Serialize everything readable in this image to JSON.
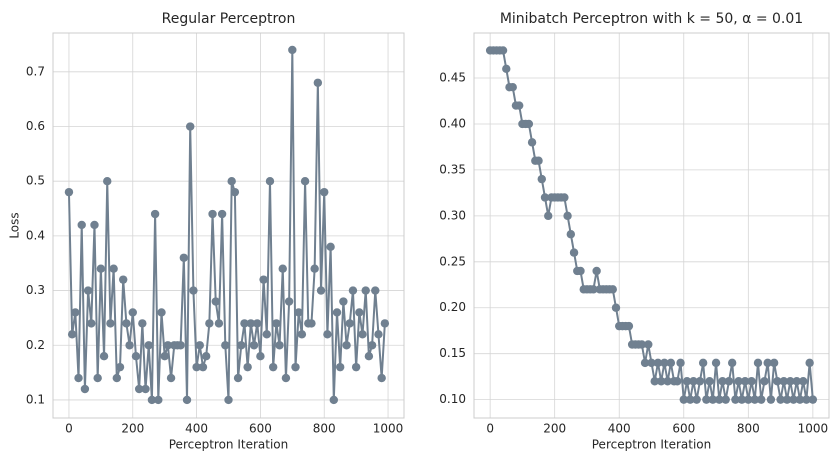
{
  "chart_data": [
    {
      "type": "line",
      "title": "Regular Perceptron",
      "xlabel": "Perceptron Iteration",
      "ylabel": "Loss",
      "color": "#708090",
      "grid": true,
      "marker": "o",
      "xlim": [
        -50,
        1050
      ],
      "ylim": [
        0.067,
        0.771
      ],
      "xticks": [
        0,
        200,
        400,
        600,
        800,
        1000
      ],
      "yticks": [
        0.1,
        0.2,
        0.3,
        0.4,
        0.5,
        0.6,
        0.7
      ],
      "x": [
        0,
        10,
        20,
        30,
        40,
        50,
        60,
        70,
        80,
        90,
        100,
        110,
        120,
        130,
        140,
        150,
        160,
        170,
        180,
        190,
        200,
        210,
        220,
        230,
        240,
        250,
        260,
        270,
        280,
        290,
        300,
        310,
        320,
        330,
        340,
        350,
        360,
        370,
        380,
        390,
        400,
        410,
        420,
        430,
        440,
        450,
        460,
        470,
        480,
        490,
        500,
        510,
        520,
        530,
        540,
        550,
        560,
        570,
        580,
        590,
        600,
        610,
        620,
        630,
        640,
        650,
        660,
        670,
        680,
        690,
        700,
        710,
        720,
        730,
        740,
        750,
        760,
        770,
        780,
        790,
        800,
        810,
        820,
        830,
        840,
        850,
        860,
        870,
        880,
        890,
        900,
        910,
        920,
        930,
        940,
        950,
        960,
        970,
        980,
        990
      ],
      "values": [
        0.48,
        0.22,
        0.26,
        0.14,
        0.42,
        0.12,
        0.3,
        0.24,
        0.42,
        0.14,
        0.34,
        0.18,
        0.5,
        0.24,
        0.34,
        0.14,
        0.16,
        0.32,
        0.24,
        0.2,
        0.26,
        0.18,
        0.12,
        0.24,
        0.12,
        0.2,
        0.1,
        0.44,
        0.1,
        0.26,
        0.18,
        0.2,
        0.14,
        0.2,
        0.2,
        0.2,
        0.36,
        0.1,
        0.6,
        0.3,
        0.16,
        0.2,
        0.16,
        0.18,
        0.24,
        0.44,
        0.28,
        0.24,
        0.44,
        0.2,
        0.1,
        0.5,
        0.48,
        0.14,
        0.2,
        0.24,
        0.16,
        0.24,
        0.2,
        0.24,
        0.18,
        0.32,
        0.22,
        0.5,
        0.16,
        0.24,
        0.2,
        0.34,
        0.14,
        0.28,
        0.74,
        0.16,
        0.26,
        0.22,
        0.5,
        0.24,
        0.24,
        0.34,
        0.68,
        0.3,
        0.48,
        0.22,
        0.38,
        0.1,
        0.26,
        0.16,
        0.28,
        0.2,
        0.24,
        0.3,
        0.16,
        0.26,
        0.22,
        0.3,
        0.18,
        0.2,
        0.3,
        0.22,
        0.14,
        0.24
      ]
    },
    {
      "type": "line",
      "title": "Minibatch Perceptron with k = 50, α = 0.01",
      "xlabel": "Perceptron Iteration",
      "color": "#708090",
      "grid": true,
      "marker": "o",
      "xlim": [
        -50,
        1050
      ],
      "ylim": [
        0.08,
        0.499
      ],
      "xticks": [
        0,
        200,
        400,
        600,
        800,
        1000
      ],
      "yticks": [
        {
          "value": 0.1,
          "label": "0.10"
        },
        0.15,
        {
          "value": 0.2,
          "label": "0.20"
        },
        0.25,
        {
          "value": 0.3,
          "label": "0.30"
        },
        0.35,
        {
          "value": 0.4,
          "label": "0.40"
        },
        0.45
      ],
      "x": [
        0,
        10,
        20,
        30,
        40,
        50,
        60,
        70,
        80,
        90,
        100,
        110,
        120,
        130,
        140,
        150,
        160,
        170,
        180,
        190,
        200,
        210,
        220,
        230,
        240,
        250,
        260,
        270,
        280,
        290,
        300,
        310,
        320,
        330,
        340,
        350,
        360,
        370,
        380,
        390,
        400,
        410,
        420,
        430,
        440,
        450,
        460,
        470,
        480,
        490,
        500,
        510,
        520,
        530,
        540,
        550,
        560,
        570,
        580,
        590,
        600,
        610,
        620,
        630,
        640,
        650,
        660,
        670,
        680,
        690,
        700,
        710,
        720,
        730,
        740,
        750,
        760,
        770,
        780,
        790,
        800,
        810,
        820,
        830,
        840,
        850,
        860,
        870,
        880,
        890,
        900,
        910,
        920,
        930,
        940,
        950,
        960,
        970,
        980,
        990,
        1000
      ],
      "values": [
        0.48,
        0.48,
        0.48,
        0.48,
        0.48,
        0.46,
        0.44,
        0.44,
        0.42,
        0.42,
        0.4,
        0.4,
        0.4,
        0.38,
        0.36,
        0.36,
        0.34,
        0.32,
        0.3,
        0.32,
        0.32,
        0.32,
        0.32,
        0.32,
        0.3,
        0.28,
        0.26,
        0.24,
        0.24,
        0.22,
        0.22,
        0.22,
        0.22,
        0.24,
        0.22,
        0.22,
        0.22,
        0.22,
        0.22,
        0.2,
        0.18,
        0.18,
        0.18,
        0.18,
        0.16,
        0.16,
        0.16,
        0.16,
        0.14,
        0.16,
        0.14,
        0.12,
        0.14,
        0.12,
        0.14,
        0.12,
        0.14,
        0.12,
        0.12,
        0.14,
        0.1,
        0.12,
        0.1,
        0.12,
        0.1,
        0.12,
        0.14,
        0.1,
        0.12,
        0.1,
        0.14,
        0.1,
        0.12,
        0.1,
        0.12,
        0.14,
        0.1,
        0.12,
        0.1,
        0.12,
        0.1,
        0.12,
        0.1,
        0.14,
        0.1,
        0.12,
        0.14,
        0.1,
        0.14,
        0.12,
        0.1,
        0.12,
        0.1,
        0.12,
        0.1,
        0.12,
        0.1,
        0.12,
        0.1,
        0.14,
        0.1
      ]
    }
  ]
}
